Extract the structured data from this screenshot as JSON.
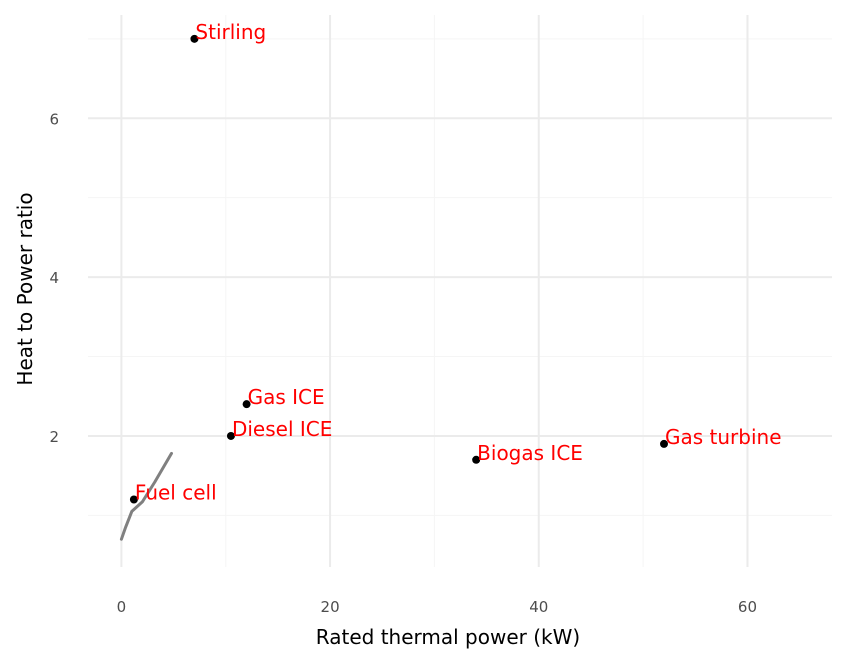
{
  "chart_data": {
    "type": "scatter",
    "title": "",
    "xlabel": "Rated thermal power (kW)",
    "ylabel": "Heat to Power ratio",
    "xlim": [
      -3.2,
      68.1
    ],
    "ylim": [
      0.35,
      7.3
    ],
    "x_ticks": [
      0,
      20,
      40,
      60
    ],
    "y_ticks": [
      2,
      4,
      6
    ],
    "grid": true,
    "legend": "none",
    "point_color": "#000000",
    "label_color": "#ff0000",
    "line_color": "#808080",
    "points": [
      {
        "label": "Stirling",
        "x": 7,
        "y": 7.0
      },
      {
        "label": "Gas ICE",
        "x": 12,
        "y": 2.4
      },
      {
        "label": "Diesel ICE",
        "x": 10.5,
        "y": 2.0
      },
      {
        "label": "Fuel cell",
        "x": 1.2,
        "y": 1.2
      },
      {
        "label": "Biogas ICE",
        "x": 34,
        "y": 1.7
      },
      {
        "label": "Gas turbine",
        "x": 52,
        "y": 1.9
      }
    ],
    "trend_line": {
      "x": [
        0,
        0.4,
        1.0,
        2.0,
        3.2,
        4.8
      ],
      "y": [
        0.7,
        0.85,
        1.05,
        1.17,
        1.42,
        1.78
      ]
    }
  }
}
